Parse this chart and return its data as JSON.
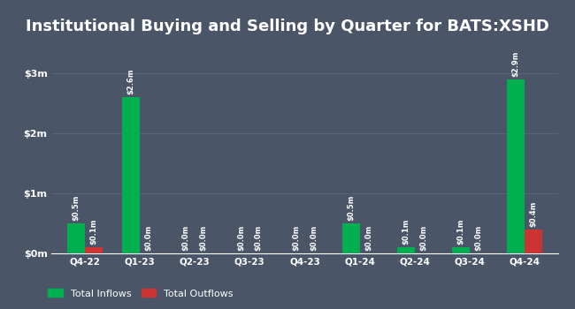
{
  "title": "Institutional Buying and Selling by Quarter for BATS:XSHD",
  "categories": [
    "Q4-22",
    "Q1-23",
    "Q2-23",
    "Q3-23",
    "Q4-23",
    "Q1-24",
    "Q2-24",
    "Q3-24",
    "Q4-24"
  ],
  "inflows": [
    0.5,
    2.6,
    0.0,
    0.0,
    0.0,
    0.5,
    0.1,
    0.1,
    2.9
  ],
  "outflows": [
    0.1,
    0.0,
    0.0,
    0.0,
    0.0,
    0.0,
    0.0,
    0.0,
    0.4
  ],
  "inflow_labels": [
    "$0.5m",
    "$2.6m",
    "$0.0m",
    "$0.0m",
    "$0.0m",
    "$0.5m",
    "$0.1m",
    "$0.1m",
    "$2.9m"
  ],
  "outflow_labels": [
    "$0.1m",
    "$0.0m",
    "$0.0m",
    "$0.0m",
    "$0.0m",
    "$0.0m",
    "$0.0m",
    "$0.0m",
    "$0.4m"
  ],
  "inflow_color": "#00b050",
  "outflow_color": "#cc3333",
  "background_color": "#4a5568",
  "text_color": "#ffffff",
  "grid_color": "#5a6478",
  "yticks": [
    0,
    1,
    2,
    3
  ],
  "ytick_labels": [
    "$0m",
    "$1m",
    "$2m",
    "$3m"
  ],
  "ylim": [
    0,
    3.5
  ],
  "bar_width": 0.32,
  "title_fontsize": 13,
  "legend_labels": [
    "Total Inflows",
    "Total Outflows"
  ],
  "label_fontsize": 6.0
}
